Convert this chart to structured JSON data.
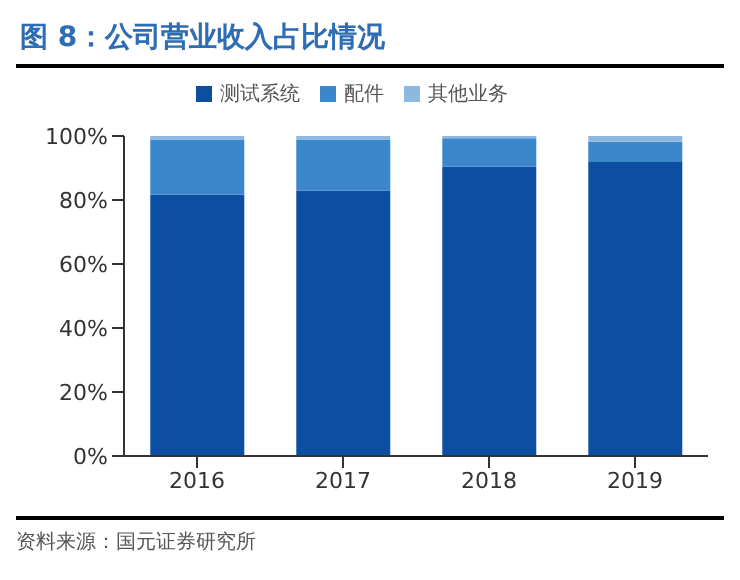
{
  "chart_data": {
    "type": "bar",
    "title": "图 8：公司营业收入占比情况",
    "categories": [
      "2016",
      "2017",
      "2018",
      "2019"
    ],
    "stacked": true,
    "series": [
      {
        "name": "测试系统",
        "color": "#0c4ea2",
        "values": [
          81.7,
          83,
          90.5,
          91.9
        ]
      },
      {
        "name": "配件",
        "color": "#3a87cc",
        "values": [
          17.2,
          15.9,
          8.8,
          6.3
        ]
      },
      {
        "name": "其他业务",
        "color": "#8db8e2",
        "values": [
          1.1,
          1.1,
          0.7,
          1.8
        ]
      }
    ],
    "ylim": [
      0,
      100
    ],
    "yticks": [
      {
        "value": 0,
        "label": "0%"
      },
      {
        "value": 20,
        "label": "20%"
      },
      {
        "value": 40,
        "label": "40%"
      },
      {
        "value": 60,
        "label": "60%"
      },
      {
        "value": 80,
        "label": "80%"
      },
      {
        "value": 100,
        "label": "100%"
      }
    ],
    "legend": "top",
    "grid": false,
    "annotations": [
      "资料来源：国元证券研究所"
    ]
  }
}
